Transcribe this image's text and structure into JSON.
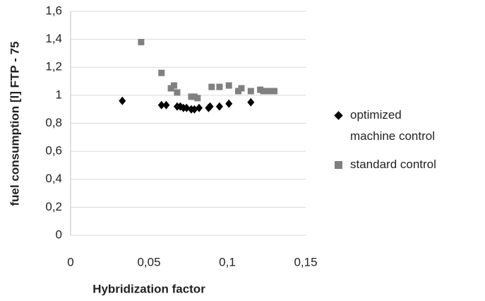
{
  "chart_data": {
    "type": "scatter",
    "xlabel": "Hybridization factor",
    "ylabel": "fuel consumption [l] FTP - 75",
    "xlim": [
      0,
      0.15
    ],
    "xticks": [
      0,
      {
        "value": 0.05,
        "label": "0,05"
      },
      {
        "value": 0.1,
        "label": "0,1"
      },
      {
        "value": 0.15,
        "label": "0,15"
      }
    ],
    "ylim": [
      0,
      1.6
    ],
    "yticks": [
      0,
      {
        "value": 0.2,
        "label": "0,2"
      },
      {
        "value": 0.4,
        "label": "0,4"
      },
      {
        "value": 0.6,
        "label": "0,6"
      },
      {
        "value": 0.8,
        "label": "0,8"
      },
      1,
      {
        "value": 1.2,
        "label": "1,2"
      },
      {
        "value": 1.4,
        "label": "1,4"
      },
      {
        "value": 1.6,
        "label": "1,6"
      }
    ],
    "grid": true,
    "legend": "right",
    "series": [
      {
        "name": "optimized machine control",
        "color": "#000000",
        "marker": "diamond",
        "x": [
          0.033,
          0.058,
          0.061,
          0.068,
          0.07,
          0.072,
          0.074,
          0.077,
          0.079,
          0.082,
          0.088,
          0.089,
          0.095,
          0.101,
          0.115
        ],
        "values": [
          0.96,
          0.93,
          0.93,
          0.92,
          0.92,
          0.91,
          0.91,
          0.9,
          0.9,
          0.91,
          0.91,
          0.92,
          0.92,
          0.94,
          0.95
        ]
      },
      {
        "name": "standard control",
        "color": "#808080",
        "marker": "square",
        "x": [
          0.045,
          0.058,
          0.064,
          0.066,
          0.068,
          0.077,
          0.079,
          0.081,
          0.09,
          0.095,
          0.101,
          0.107,
          0.109,
          0.115,
          0.121,
          0.123,
          0.125,
          0.128,
          0.13
        ],
        "values": [
          1.38,
          1.16,
          1.05,
          1.07,
          1.02,
          0.99,
          0.99,
          0.98,
          1.06,
          1.06,
          1.07,
          1.03,
          1.05,
          1.03,
          1.04,
          1.03,
          1.03,
          1.03,
          1.03
        ]
      }
    ]
  }
}
